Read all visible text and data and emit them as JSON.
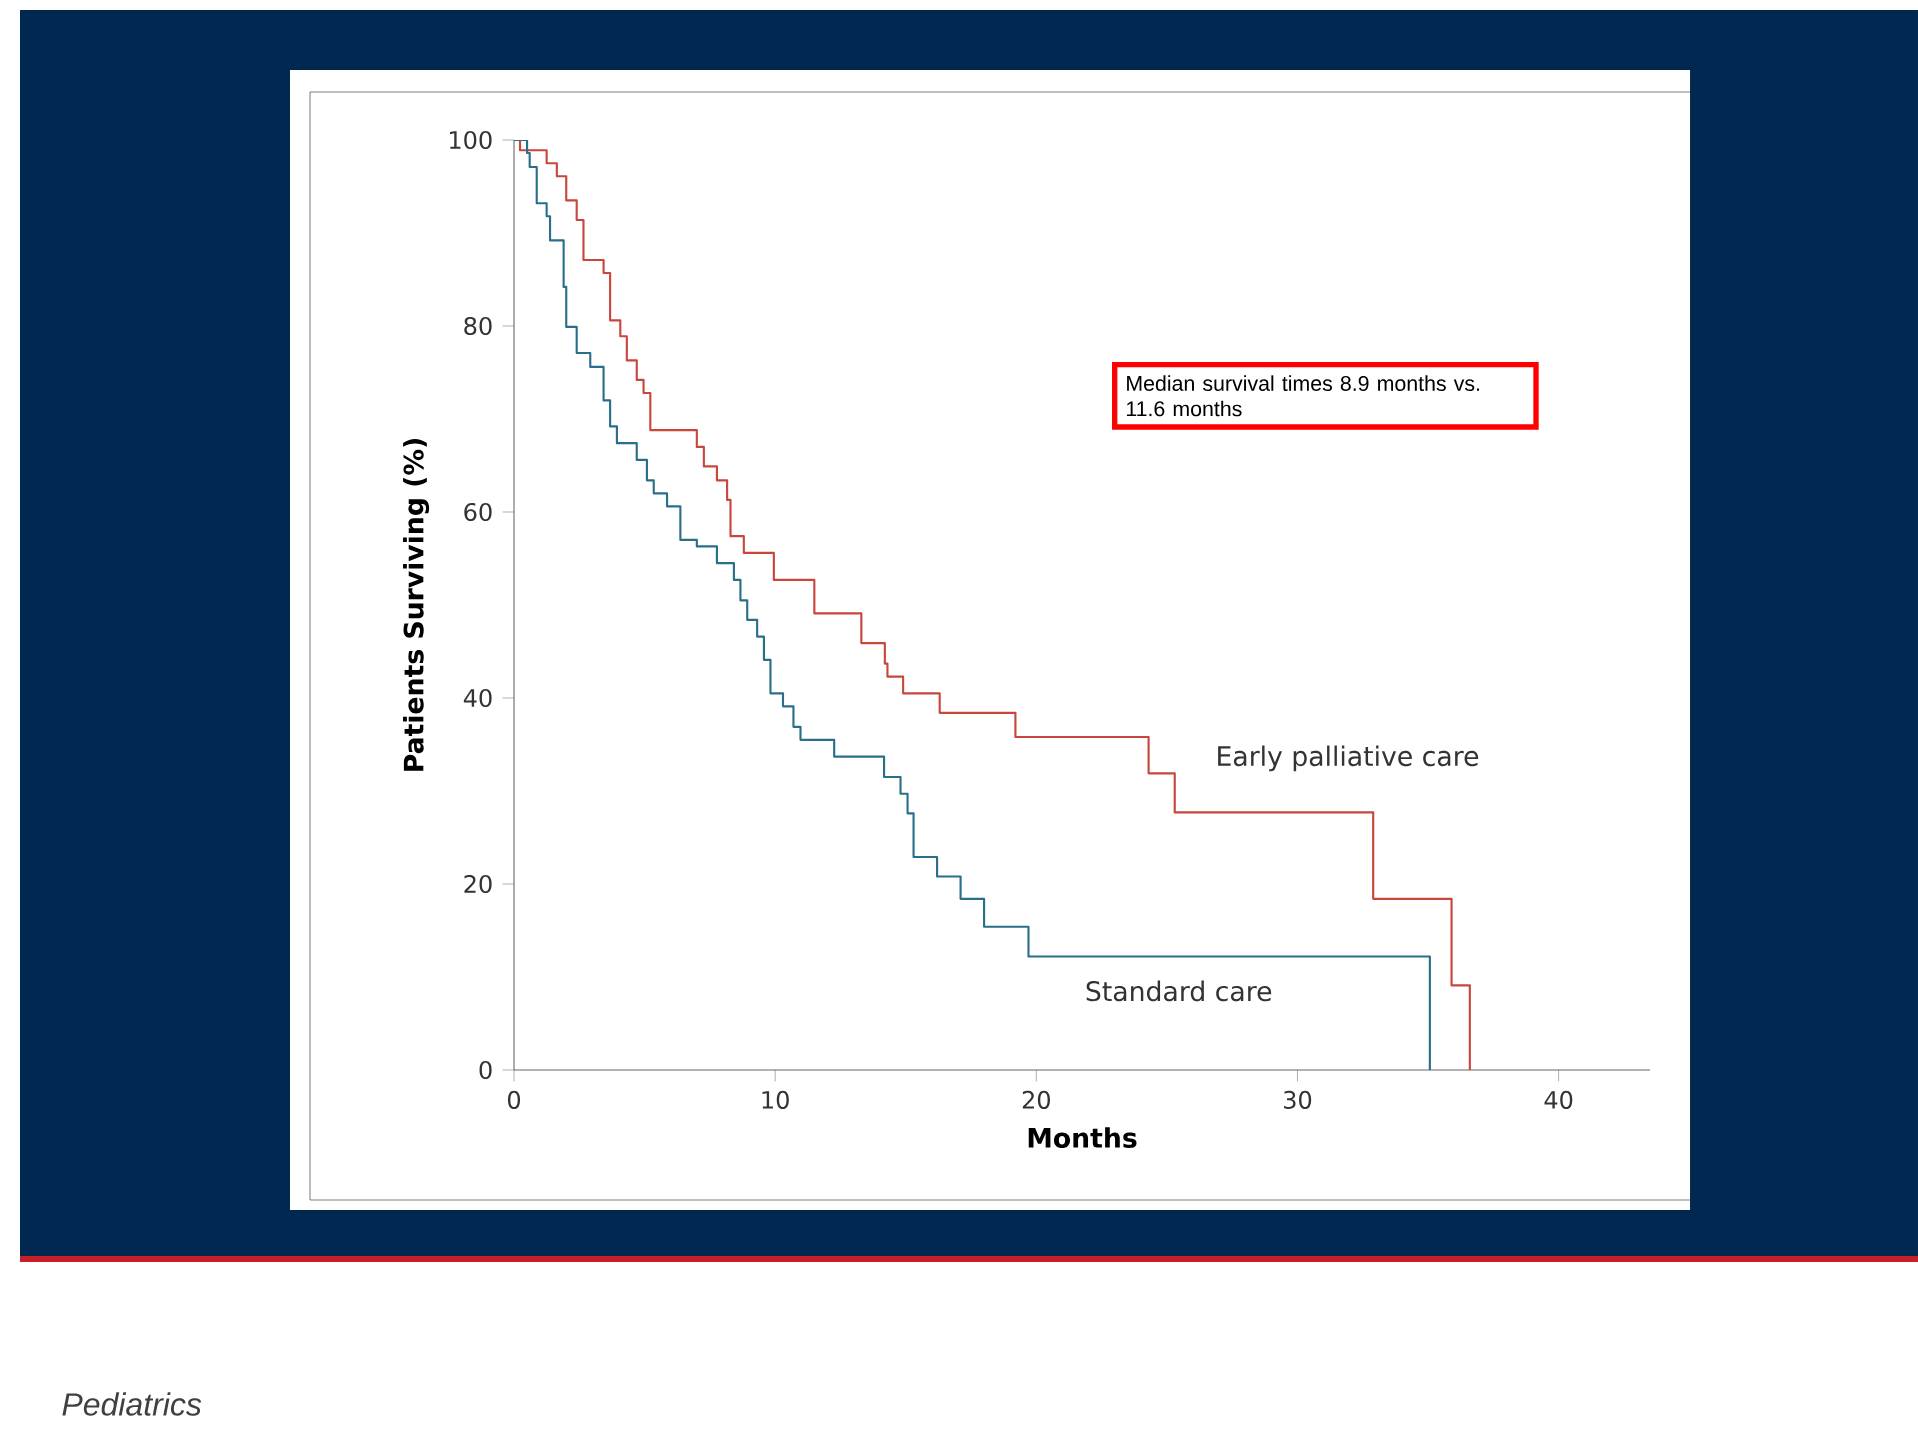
{
  "chart_data": {
    "type": "step",
    "xlabel": "Months",
    "ylabel": "Patients Surviving (%)",
    "xlim": [
      0,
      43.5
    ],
    "ylim": [
      0,
      100
    ],
    "xticks": [
      0,
      10,
      20,
      30,
      40
    ],
    "yticks": [
      0,
      20,
      40,
      60,
      80,
      100
    ],
    "grid": false,
    "legend": false,
    "line_style": "solid",
    "annotations": [
      "Median survival times 8.9 months vs. 11.6 months",
      "Pediatrics"
    ],
    "series": [
      {
        "name": "Early palliative care",
        "color": "#c8463c",
        "x": [
          0,
          0.23,
          1.25,
          1.64,
          2.0,
          2.4,
          2.66,
          3.43,
          3.68,
          4.07,
          4.32,
          4.7,
          4.96,
          5.22,
          7.0,
          7.27,
          7.77,
          8.16,
          8.29,
          8.8,
          9.95,
          11.5,
          13.3,
          14.2,
          14.3,
          14.9,
          16.3,
          19.2,
          24.3,
          25.3,
          32.9,
          35.9,
          36.6
        ],
        "values": [
          100,
          98.9,
          97.5,
          96.1,
          93.5,
          91.4,
          87.1,
          85.7,
          80.6,
          78.9,
          76.3,
          74.2,
          72.8,
          68.8,
          67.0,
          64.9,
          63.4,
          61.3,
          57.4,
          55.6,
          52.7,
          49.1,
          45.9,
          43.7,
          42.3,
          40.5,
          38.4,
          35.8,
          31.9,
          27.7,
          18.4,
          9.1,
          0
        ]
      },
      {
        "name": "Standard care",
        "color": "#2a6f8a",
        "x": [
          0,
          0.5,
          0.6,
          0.87,
          1.25,
          1.38,
          1.9,
          2.0,
          2.4,
          2.92,
          3.43,
          3.68,
          3.94,
          4.7,
          5.09,
          5.35,
          5.86,
          6.37,
          7.0,
          7.77,
          8.42,
          8.67,
          8.93,
          9.31,
          9.57,
          9.82,
          10.3,
          10.7,
          10.97,
          12.26,
          14.17,
          14.8,
          15.07,
          15.3,
          16.2,
          17.1,
          18.0,
          19.7,
          35.07
        ],
        "values": [
          100,
          98.6,
          97.1,
          93.2,
          91.8,
          89.2,
          84.2,
          79.9,
          77.1,
          75.6,
          72.0,
          69.2,
          67.4,
          65.6,
          63.4,
          62.0,
          60.6,
          57.0,
          56.3,
          54.5,
          52.7,
          50.5,
          48.4,
          46.6,
          44.1,
          40.5,
          39.1,
          36.9,
          35.5,
          33.7,
          31.5,
          29.7,
          27.6,
          22.9,
          20.8,
          18.4,
          15.4,
          12.2,
          0
        ]
      }
    ]
  }
}
